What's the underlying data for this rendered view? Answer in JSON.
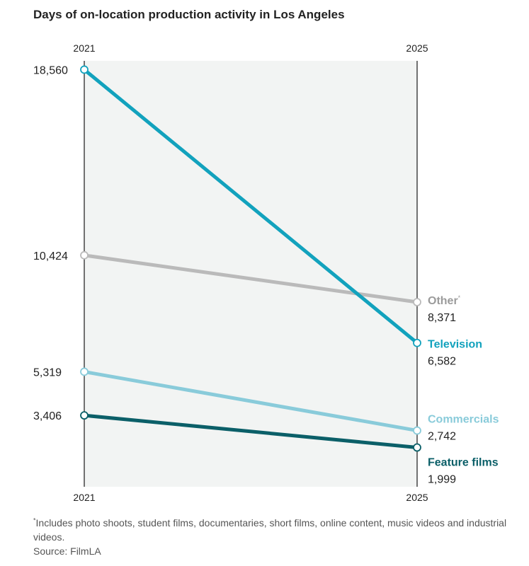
{
  "title": "Days of on-location production activity in Los Angeles",
  "footnote": {
    "marker": "*",
    "text": "Includes photo shoots, student films, documentaries, short films, online content, music videos and industrial videos."
  },
  "source": "Source: FilmLA",
  "colors": {
    "plot_bg": "#f2f4f3",
    "axis": "#444444",
    "text": "#222222",
    "muted": "#555555"
  },
  "chart_data": {
    "type": "line",
    "title": "Days of on-location production activity in Los Angeles",
    "x": [
      "2021",
      "2025"
    ],
    "ylim": [
      0,
      20000
    ],
    "grid": false,
    "series": [
      {
        "name": "Other",
        "marker": "*",
        "values": [
          10424,
          8371
        ],
        "labels": [
          "10,424",
          "8,371"
        ],
        "color": "#bababa",
        "label_color": "#9b9b9b"
      },
      {
        "name": "Television",
        "values": [
          18560,
          6582
        ],
        "labels": [
          "18,560",
          "6,582"
        ],
        "color": "#12a2bd",
        "label_color": "#12a2bd"
      },
      {
        "name": "Commercials",
        "values": [
          5319,
          2742
        ],
        "labels": [
          "5,319",
          "2,742"
        ],
        "color": "#89cbda",
        "label_color": "#89cbda"
      },
      {
        "name": "Feature films",
        "values": [
          3406,
          1999
        ],
        "labels": [
          "3,406",
          "1,999"
        ],
        "color": "#0b5f68",
        "label_color": "#0b5f68"
      }
    ]
  }
}
